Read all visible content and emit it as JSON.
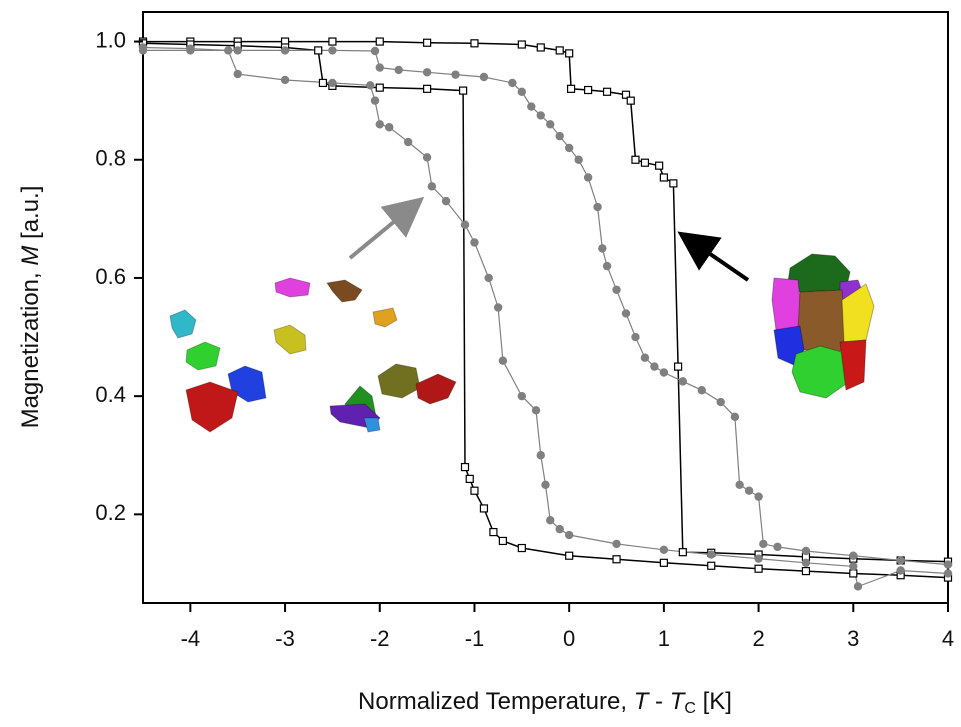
{
  "chart_data": {
    "type": "line",
    "xlabel_parts": [
      "Normalized Temperature, ",
      "T",
      " - ",
      "T",
      "C",
      " [K]"
    ],
    "ylabel_parts": [
      "Magnetization, ",
      "M",
      " [a.u.]"
    ],
    "xlim": [
      -4.5,
      4
    ],
    "xticks": [
      -4,
      -3,
      -2,
      -1,
      0,
      1,
      2,
      3,
      4
    ],
    "ylim": [
      0.05,
      1.05
    ],
    "yticks": [
      {
        "value": 1,
        "label": "1.0"
      },
      0.8,
      0.6,
      0.4,
      0.2
    ],
    "series": [
      {
        "color": "#000000",
        "marker": "square",
        "x": [
          -4.5,
          -4.0,
          -3.5,
          -3.0,
          -2.5,
          -2.0,
          -1.5,
          -1.0,
          -0.5,
          -0.3,
          -0.1,
          0.0,
          0.02,
          0.2,
          0.4,
          0.6,
          0.65,
          0.7,
          0.8,
          0.95,
          1.0,
          1.1,
          1.15,
          1.2,
          1.5,
          2.0,
          2.5,
          3.0,
          3.5,
          4.0
        ],
        "values": [
          1.0,
          1.0,
          1.0,
          1.0,
          1.0,
          1.0,
          0.998,
          0.997,
          0.995,
          0.99,
          0.985,
          0.98,
          0.92,
          0.918,
          0.915,
          0.91,
          0.9,
          0.8,
          0.795,
          0.79,
          0.77,
          0.76,
          0.45,
          0.136,
          0.135,
          0.132,
          0.128,
          0.125,
          0.122,
          0.12
        ]
      },
      {
        "color": "#000000",
        "marker": "square",
        "x": [
          4.0,
          3.5,
          3.0,
          2.5,
          2.0,
          1.5,
          1.0,
          0.5,
          0.0,
          -0.5,
          -0.7,
          -0.8,
          -0.9,
          -1.0,
          -1.05,
          -1.1,
          -1.12,
          -1.5,
          -2.0,
          -2.5,
          -2.6,
          -2.65,
          -3.0,
          -3.5,
          -4.0,
          -4.5
        ],
        "values": [
          0.093,
          0.097,
          0.1,
          0.104,
          0.108,
          0.113,
          0.118,
          0.124,
          0.13,
          0.143,
          0.155,
          0.17,
          0.21,
          0.24,
          0.26,
          0.28,
          0.917,
          0.92,
          0.922,
          0.925,
          0.93,
          0.985,
          0.99,
          0.993,
          0.995,
          0.997
        ]
      },
      {
        "color": "#808080",
        "marker": "circle",
        "x": [
          -4.5,
          -4.0,
          -3.5,
          -3.0,
          -2.5,
          -2.05,
          -2.0,
          -1.8,
          -1.5,
          -1.2,
          -0.9,
          -0.6,
          -0.5,
          -0.4,
          -0.3,
          -0.2,
          -0.1,
          0.0,
          0.1,
          0.2,
          0.3,
          0.35,
          0.4,
          0.5,
          0.6,
          0.7,
          0.8,
          0.9,
          1.0,
          1.2,
          1.4,
          1.6,
          1.75,
          1.8,
          1.9,
          2.0,
          2.05,
          2.2,
          2.5,
          3.0,
          3.5,
          4.0
        ],
        "values": [
          0.985,
          0.985,
          0.985,
          0.985,
          0.985,
          0.984,
          0.956,
          0.952,
          0.948,
          0.944,
          0.94,
          0.93,
          0.915,
          0.89,
          0.875,
          0.86,
          0.84,
          0.82,
          0.8,
          0.77,
          0.72,
          0.65,
          0.62,
          0.58,
          0.54,
          0.5,
          0.465,
          0.45,
          0.44,
          0.425,
          0.41,
          0.39,
          0.365,
          0.25,
          0.24,
          0.23,
          0.15,
          0.145,
          0.138,
          0.13,
          0.122,
          0.115
        ]
      },
      {
        "color": "#808080",
        "marker": "circle",
        "x": [
          4.0,
          3.5,
          3.05,
          3.0,
          2.5,
          2.0,
          1.5,
          1.0,
          0.5,
          0.0,
          -0.1,
          -0.2,
          -0.25,
          -0.3,
          -0.35,
          -0.5,
          -0.7,
          -0.75,
          -0.85,
          -1.0,
          -1.1,
          -1.3,
          -1.45,
          -1.5,
          -1.7,
          -1.9,
          -2.0,
          -2.05,
          -2.1,
          -2.5,
          -3.0,
          -3.5,
          -3.6,
          -4.0,
          -4.5
        ],
        "values": [
          0.1,
          0.105,
          0.078,
          0.112,
          0.118,
          0.125,
          0.132,
          0.14,
          0.15,
          0.165,
          0.175,
          0.19,
          0.25,
          0.3,
          0.376,
          0.4,
          0.46,
          0.55,
          0.6,
          0.66,
          0.69,
          0.73,
          0.755,
          0.804,
          0.83,
          0.855,
          0.86,
          0.9,
          0.926,
          0.93,
          0.935,
          0.945,
          0.985,
          0.988,
          0.99
        ]
      }
    ]
  }
}
